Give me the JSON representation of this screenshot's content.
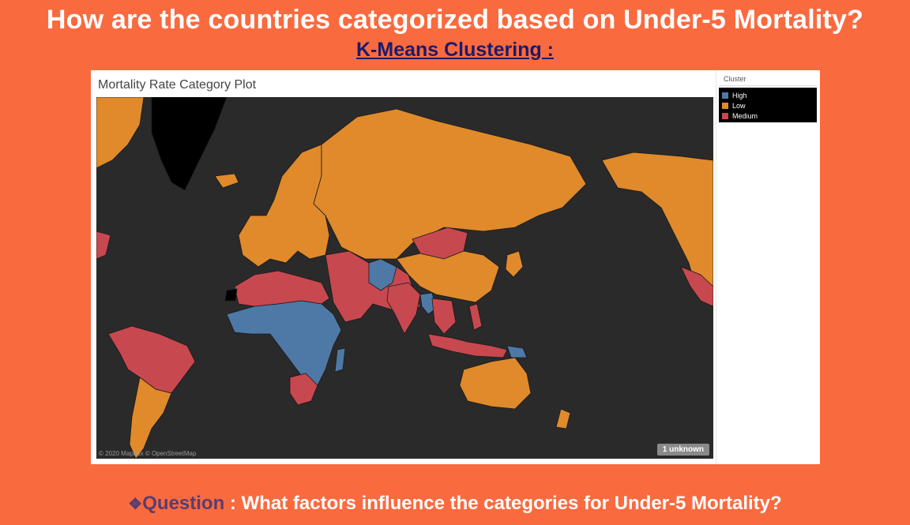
{
  "header": {
    "title": "How are the countries categorized based on Under-5 Mortality?",
    "subtitle": "K-Means Clustering :"
  },
  "viz": {
    "title": "Mortality Rate Category Plot",
    "attribution": "© 2020 Mapbox © OpenStreetMap",
    "unknown_badge": "1 unknown"
  },
  "legend": {
    "title": "Cluster",
    "items": [
      {
        "label": "High",
        "color": "#4e79a7"
      },
      {
        "label": "Low",
        "color": "#e08a2b"
      },
      {
        "label": "Medium",
        "color": "#c8484f"
      }
    ]
  },
  "map_colors": {
    "background": "#2a2a2a",
    "no_data": "#000000",
    "high": "#4e79a7",
    "low": "#e08a2b",
    "medium": "#c8484f"
  },
  "footer": {
    "diamond": "❖",
    "question_word": "Question",
    "question_text": " : What factors influence the categories for Under-5 Mortality?"
  }
}
